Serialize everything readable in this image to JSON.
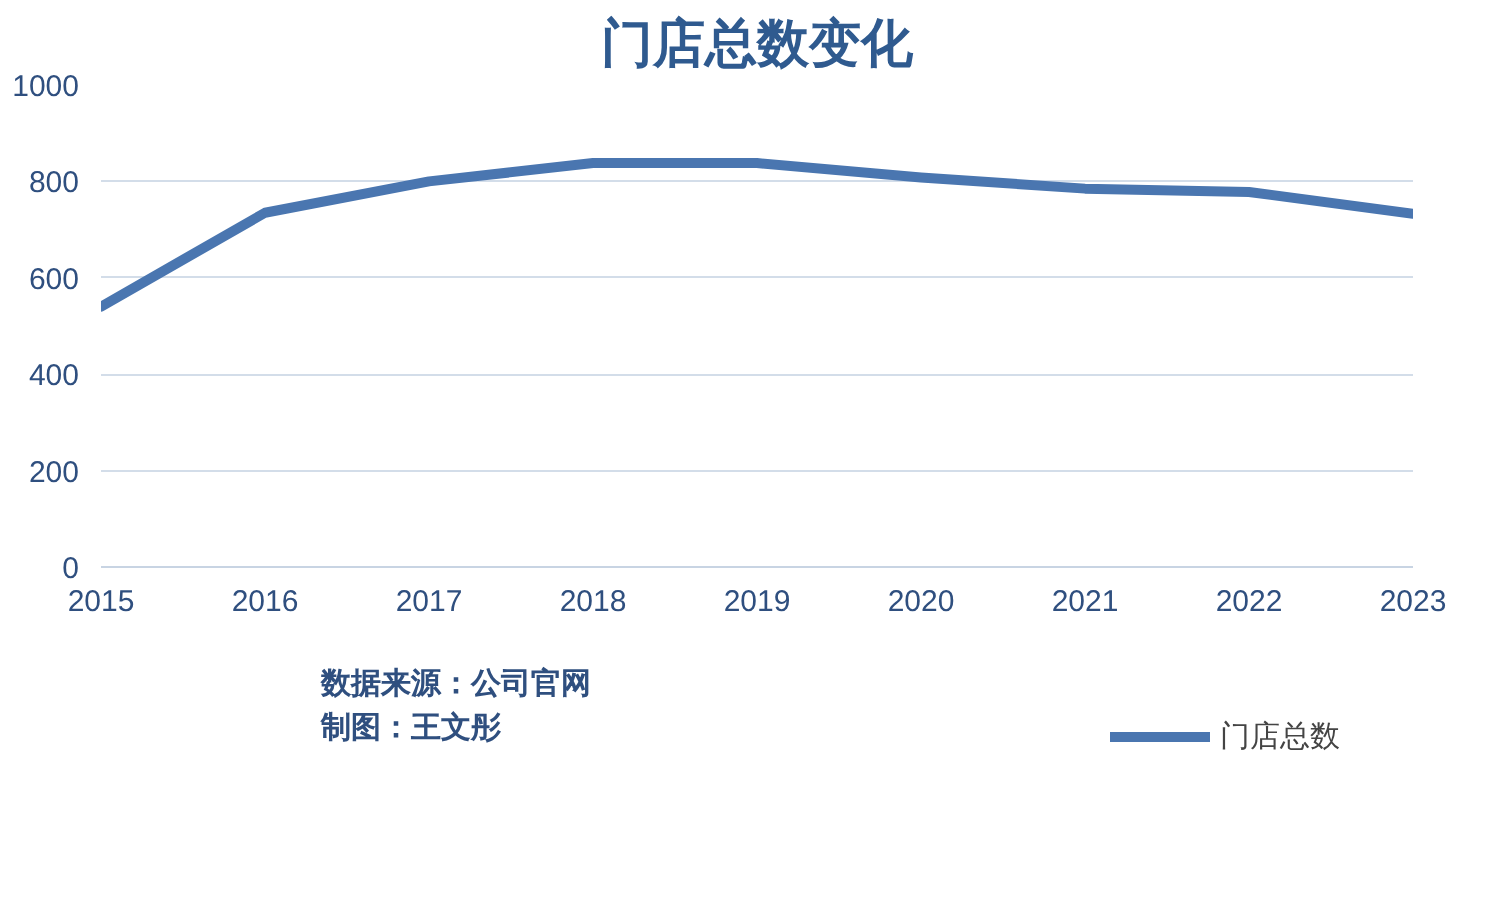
{
  "chart_data": {
    "type": "line",
    "title": "门店总数变化",
    "x": [
      2015,
      2016,
      2017,
      2018,
      2019,
      2020,
      2021,
      2022,
      2023
    ],
    "series": [
      {
        "name": "门店总数",
        "color": "#4a76b0",
        "values": [
          540,
          735,
          800,
          838,
          838,
          808,
          785,
          778,
          733
        ]
      }
    ],
    "xlim": [
      2015,
      2023
    ],
    "xticks": [
      2015,
      2016,
      2017,
      2018,
      2019,
      2020,
      2021,
      2022,
      2023
    ],
    "ylim": [
      0,
      1000
    ],
    "yticks": [
      0,
      200,
      400,
      600,
      800,
      1000
    ],
    "grid": "y",
    "legend": "bottom right",
    "marker": "none",
    "line_style": "solid",
    "annotations": [
      "数据来源：公司官网",
      "制图：王文彤"
    ]
  }
}
